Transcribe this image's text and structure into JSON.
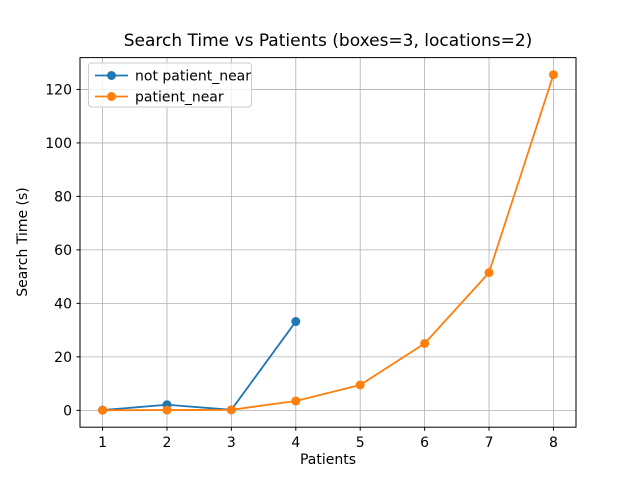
{
  "figure": {
    "background": "#ffffff",
    "spine_color": "#000000",
    "tick_color": "#000000"
  },
  "chart_data": {
    "type": "line",
    "title": "Search Time vs Patients (boxes=3, locations=2)",
    "xlabel": "Patients",
    "ylabel": "Search Time (s)",
    "xlim": [
      0.65,
      8.35
    ],
    "ylim": [
      -6.3,
      131.9
    ],
    "xticks": [
      1,
      2,
      3,
      4,
      5,
      6,
      7,
      8
    ],
    "yticks": [
      0,
      20,
      40,
      60,
      80,
      100,
      120
    ],
    "grid": true,
    "grid_color": "#b0b0b0",
    "legend_position": "upper left",
    "series": [
      {
        "name": "not patient_near",
        "color": "#1f77b4",
        "x": [
          1,
          2,
          3,
          4
        ],
        "y": [
          0.1,
          2.1,
          0.2,
          33.2
        ]
      },
      {
        "name": "patient_near",
        "color": "#ff7f0e",
        "x": [
          1,
          2,
          3,
          4,
          5,
          6,
          7,
          8
        ],
        "y": [
          0.05,
          0.1,
          0.2,
          3.5,
          9.5,
          25,
          51.5,
          125.5
        ]
      }
    ]
  }
}
